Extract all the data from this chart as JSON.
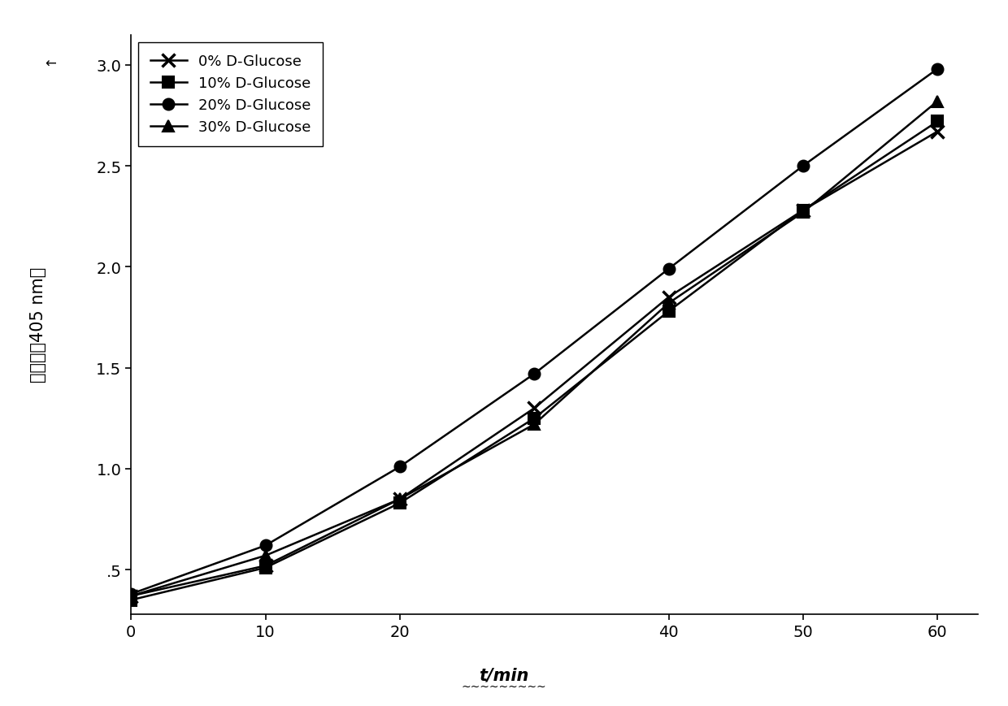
{
  "x": [
    0,
    10,
    20,
    30,
    40,
    50,
    60
  ],
  "series": [
    {
      "label": "0% D-Glucose",
      "y": [
        0.37,
        0.52,
        0.85,
        1.3,
        1.85,
        2.28,
        2.67
      ],
      "marker": "x",
      "markersize": 11,
      "linewidth": 1.8,
      "color": "#000000",
      "markeredgewidth": 2.5
    },
    {
      "label": "10% D-Glucose",
      "y": [
        0.35,
        0.51,
        0.83,
        1.25,
        1.78,
        2.28,
        2.72
      ],
      "marker": "s",
      "markersize": 10,
      "linewidth": 1.8,
      "color": "#000000",
      "markeredgewidth": 1.5
    },
    {
      "label": "20% D-Glucose",
      "y": [
        0.38,
        0.62,
        1.01,
        1.47,
        1.99,
        2.5,
        2.98
      ],
      "marker": "o",
      "markersize": 10,
      "linewidth": 1.8,
      "color": "#000000",
      "markeredgewidth": 1.5
    },
    {
      "label": "30% D-Glucose",
      "y": [
        0.37,
        0.57,
        0.85,
        1.22,
        1.82,
        2.27,
        2.82
      ],
      "marker": "^",
      "markersize": 10,
      "linewidth": 1.8,
      "color": "#000000",
      "markeredgewidth": 1.5
    }
  ],
  "xlabel": "t/min",
  "ylabel_chinese": "吸光度（405 nm）",
  "xlim": [
    0,
    63
  ],
  "ylim": [
    0.28,
    3.15
  ],
  "xticks": [
    0,
    10,
    20,
    40,
    50,
    60
  ],
  "xtick_labels": [
    "0",
    "10",
    "20",
    "40",
    "50",
    "60"
  ],
  "yticks": [
    0.5,
    1.0,
    1.5,
    2.0,
    2.5,
    3.0
  ],
  "ytick_labels": [
    ".5",
    "1.0",
    "1.5",
    "2.0",
    "2.5",
    "3.0"
  ],
  "background_color": "#ffffff",
  "legend_loc": "upper left",
  "legend_fontsize": 13,
  "tick_fontsize": 14,
  "axis_label_fontsize": 15
}
